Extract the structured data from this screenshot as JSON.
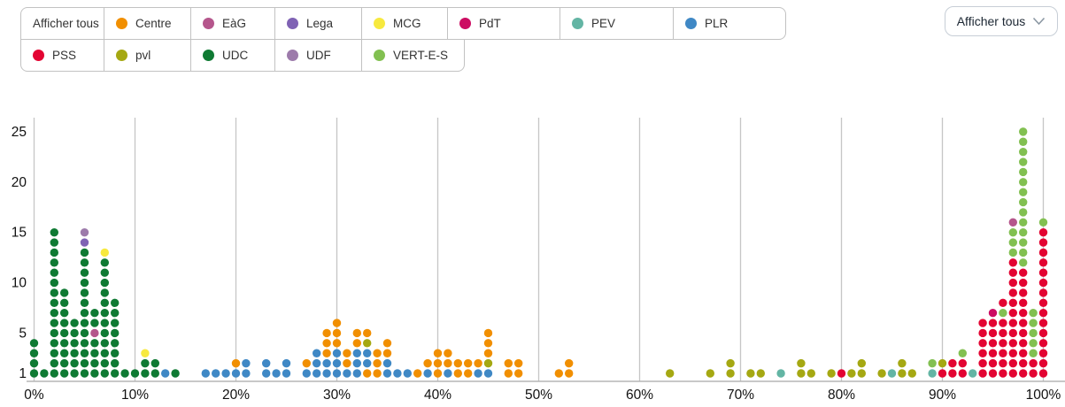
{
  "legend": {
    "rows": [
      [
        {
          "label": "Afficher tous",
          "party": null
        },
        {
          "label": "Centre",
          "party": "Centre"
        },
        {
          "label": "EàG",
          "party": "EàG"
        },
        {
          "label": "Lega",
          "party": "Lega"
        },
        {
          "label": "MCG",
          "party": "MCG"
        },
        {
          "label": "PdT",
          "party": "PdT"
        },
        {
          "label": "PEV",
          "party": "PEV"
        },
        {
          "label": "PLR",
          "party": "PLR"
        }
      ],
      [
        {
          "label": "PSS",
          "party": "PSS"
        },
        {
          "label": "pvl",
          "party": "pvl"
        },
        {
          "label": "UDC",
          "party": "UDC"
        },
        {
          "label": "UDF",
          "party": "UDF"
        },
        {
          "label": "VERT-E-S",
          "party": "VERT-E-S"
        }
      ]
    ]
  },
  "dropdown": {
    "label": "Afficher tous"
  },
  "party_colors": {
    "Centre": "#f18f01",
    "EàG": "#b5568c",
    "Lega": "#7f62b4",
    "MCG": "#f7e93e",
    "PdT": "#cc0c62",
    "PEV": "#63b5a4",
    "PLR": "#3f88c5",
    "PSS": "#e30432",
    "pvl": "#a5a812",
    "UDC": "#0f7a33",
    "UDF": "#9d7bab",
    "VERT-E-S": "#82c051"
  },
  "chart_data": {
    "type": "scatter",
    "subtype": "stacked-dot-histogram",
    "title": "",
    "xlabel": "",
    "ylabel": "",
    "x_ticks": [
      "0%",
      "10%",
      "20%",
      "30%",
      "40%",
      "50%",
      "60%",
      "70%",
      "80%",
      "90%",
      "100%"
    ],
    "y_ticks": [
      1,
      5,
      10,
      15,
      20,
      25
    ],
    "x_range": [
      0,
      100
    ],
    "y_range": [
      1,
      25
    ],
    "grid": "vertical-only",
    "gridline_color": "#c6c6c6",
    "axis_text_color": "#111111",
    "columns": [
      {
        "pct": 0,
        "stack": [
          "UDC",
          "UDC",
          "UDC",
          "UDC"
        ]
      },
      {
        "pct": 1,
        "stack": [
          "UDC"
        ]
      },
      {
        "pct": 2,
        "stack": [
          "UDC",
          "UDC",
          "UDC",
          "UDC",
          "UDC",
          "UDC",
          "UDC",
          "UDC",
          "UDC",
          "UDC",
          "UDC",
          "UDC",
          "UDC",
          "UDC",
          "UDC"
        ]
      },
      {
        "pct": 3,
        "stack": [
          "UDC",
          "UDC",
          "UDC",
          "UDC",
          "UDC",
          "UDC",
          "UDC",
          "UDC",
          "UDC"
        ]
      },
      {
        "pct": 4,
        "stack": [
          "UDC",
          "UDC",
          "UDC",
          "UDC",
          "UDC",
          "UDC"
        ]
      },
      {
        "pct": 5,
        "stack": [
          "UDC",
          "UDC",
          "UDC",
          "UDC",
          "UDC",
          "UDC",
          "UDC",
          "UDC",
          "UDC",
          "UDC",
          "UDC",
          "UDC",
          "UDC",
          "Lega",
          "UDF"
        ]
      },
      {
        "pct": 6,
        "stack": [
          "UDC",
          "UDC",
          "UDC",
          "UDC",
          "EàG",
          "UDC",
          "UDC"
        ]
      },
      {
        "pct": 7,
        "stack": [
          "UDC",
          "UDC",
          "UDC",
          "UDC",
          "UDC",
          "UDC",
          "UDC",
          "UDC",
          "UDC",
          "UDC",
          "UDC",
          "UDC",
          "MCG"
        ]
      },
      {
        "pct": 8,
        "stack": [
          "UDC",
          "UDC",
          "UDC",
          "UDC",
          "UDC",
          "UDC",
          "UDC",
          "UDC"
        ]
      },
      {
        "pct": 9,
        "stack": [
          "UDC"
        ]
      },
      {
        "pct": 10,
        "stack": [
          "UDC"
        ]
      },
      {
        "pct": 11,
        "stack": [
          "UDC",
          "UDC",
          "MCG"
        ]
      },
      {
        "pct": 12,
        "stack": [
          "UDC",
          "UDC"
        ]
      },
      {
        "pct": 13,
        "stack": [
          "PLR"
        ]
      },
      {
        "pct": 14,
        "stack": [
          "UDC"
        ]
      },
      {
        "pct": 17,
        "stack": [
          "PLR"
        ]
      },
      {
        "pct": 18,
        "stack": [
          "PLR"
        ]
      },
      {
        "pct": 19,
        "stack": [
          "PLR"
        ]
      },
      {
        "pct": 20,
        "stack": [
          "PLR",
          "Centre"
        ]
      },
      {
        "pct": 21,
        "stack": [
          "PLR",
          "PLR"
        ]
      },
      {
        "pct": 23,
        "stack": [
          "PLR",
          "PLR"
        ]
      },
      {
        "pct": 24,
        "stack": [
          "PLR"
        ]
      },
      {
        "pct": 25,
        "stack": [
          "PLR",
          "PLR"
        ]
      },
      {
        "pct": 27,
        "stack": [
          "PLR",
          "Centre"
        ]
      },
      {
        "pct": 28,
        "stack": [
          "PLR",
          "PLR",
          "PLR"
        ]
      },
      {
        "pct": 29,
        "stack": [
          "PLR",
          "PLR",
          "Centre",
          "Centre",
          "Centre"
        ]
      },
      {
        "pct": 30,
        "stack": [
          "PLR",
          "PLR",
          "PLR",
          "Centre",
          "Centre",
          "Centre"
        ]
      },
      {
        "pct": 31,
        "stack": [
          "PLR",
          "Centre",
          "Centre"
        ]
      },
      {
        "pct": 32,
        "stack": [
          "PLR",
          "PLR",
          "PLR",
          "Centre",
          "Centre"
        ]
      },
      {
        "pct": 33,
        "stack": [
          "Centre",
          "PLR",
          "PLR",
          "pvl",
          "Centre"
        ]
      },
      {
        "pct": 34,
        "stack": [
          "Centre",
          "Centre",
          "Centre"
        ]
      },
      {
        "pct": 35,
        "stack": [
          "PLR",
          "PLR",
          "Centre",
          "Centre"
        ]
      },
      {
        "pct": 36,
        "stack": [
          "PLR"
        ]
      },
      {
        "pct": 37,
        "stack": [
          "PLR"
        ]
      },
      {
        "pct": 38,
        "stack": [
          "Centre"
        ]
      },
      {
        "pct": 39,
        "stack": [
          "PLR",
          "Centre"
        ]
      },
      {
        "pct": 40,
        "stack": [
          "Centre",
          "Centre",
          "Centre"
        ]
      },
      {
        "pct": 41,
        "stack": [
          "PLR",
          "Centre",
          "Centre"
        ]
      },
      {
        "pct": 42,
        "stack": [
          "Centre",
          "Centre"
        ]
      },
      {
        "pct": 43,
        "stack": [
          "Centre",
          "Centre"
        ]
      },
      {
        "pct": 44,
        "stack": [
          "PLR",
          "Centre"
        ]
      },
      {
        "pct": 45,
        "stack": [
          "PLR",
          "pvl",
          "Centre",
          "Centre",
          "Centre"
        ]
      },
      {
        "pct": 47,
        "stack": [
          "Centre",
          "Centre"
        ]
      },
      {
        "pct": 48,
        "stack": [
          "Centre",
          "Centre"
        ]
      },
      {
        "pct": 52,
        "stack": [
          "Centre"
        ]
      },
      {
        "pct": 53,
        "stack": [
          "Centre",
          "Centre"
        ]
      },
      {
        "pct": 63,
        "stack": [
          "pvl"
        ]
      },
      {
        "pct": 67,
        "stack": [
          "pvl"
        ]
      },
      {
        "pct": 69,
        "stack": [
          "pvl",
          "pvl"
        ]
      },
      {
        "pct": 71,
        "stack": [
          "pvl"
        ]
      },
      {
        "pct": 72,
        "stack": [
          "pvl"
        ]
      },
      {
        "pct": 74,
        "stack": [
          "PEV"
        ]
      },
      {
        "pct": 76,
        "stack": [
          "pvl",
          "pvl"
        ]
      },
      {
        "pct": 77,
        "stack": [
          "pvl"
        ]
      },
      {
        "pct": 79,
        "stack": [
          "pvl"
        ]
      },
      {
        "pct": 80,
        "stack": [
          "PSS"
        ]
      },
      {
        "pct": 81,
        "stack": [
          "pvl"
        ]
      },
      {
        "pct": 82,
        "stack": [
          "pvl",
          "pvl"
        ]
      },
      {
        "pct": 84,
        "stack": [
          "pvl"
        ]
      },
      {
        "pct": 85,
        "stack": [
          "PEV"
        ]
      },
      {
        "pct": 86,
        "stack": [
          "pvl",
          "pvl"
        ]
      },
      {
        "pct": 87,
        "stack": [
          "pvl"
        ]
      },
      {
        "pct": 89,
        "stack": [
          "PEV",
          "VERT-E-S"
        ]
      },
      {
        "pct": 90,
        "stack": [
          "PSS",
          "pvl"
        ]
      },
      {
        "pct": 91,
        "stack": [
          "PSS",
          "PSS"
        ]
      },
      {
        "pct": 92,
        "stack": [
          "PSS",
          "PSS",
          "VERT-E-S"
        ]
      },
      {
        "pct": 93,
        "stack": [
          "PEV"
        ]
      },
      {
        "pct": 94,
        "stack": [
          "PSS",
          "PSS",
          "PSS",
          "PSS",
          "PSS",
          "PSS"
        ]
      },
      {
        "pct": 95,
        "stack": [
          "PSS",
          "PSS",
          "PSS",
          "PSS",
          "PSS",
          "PSS",
          "PdT"
        ]
      },
      {
        "pct": 96,
        "stack": [
          "PSS",
          "PSS",
          "PSS",
          "PSS",
          "PSS",
          "PSS",
          "VERT-E-S",
          "PSS"
        ]
      },
      {
        "pct": 97,
        "stack": [
          "PSS",
          "PSS",
          "PSS",
          "PSS",
          "PSS",
          "PSS",
          "PSS",
          "PSS",
          "PSS",
          "PSS",
          "PSS",
          "PSS",
          "VERT-E-S",
          "VERT-E-S",
          "VERT-E-S",
          "EàG"
        ]
      },
      {
        "pct": 98,
        "stack": [
          "PSS",
          "PSS",
          "PSS",
          "PSS",
          "PSS",
          "PSS",
          "PSS",
          "PSS",
          "PSS",
          "PSS",
          "PSS",
          "VERT-E-S",
          "VERT-E-S",
          "VERT-E-S",
          "VERT-E-S",
          "VERT-E-S",
          "VERT-E-S",
          "VERT-E-S",
          "VERT-E-S",
          "VERT-E-S",
          "VERT-E-S",
          "VERT-E-S",
          "VERT-E-S",
          "VERT-E-S",
          "VERT-E-S"
        ]
      },
      {
        "pct": 99,
        "stack": [
          "PSS",
          "PSS",
          "VERT-E-S",
          "VERT-E-S",
          "VERT-E-S",
          "VERT-E-S",
          "VERT-E-S"
        ]
      },
      {
        "pct": 100,
        "stack": [
          "PSS",
          "PSS",
          "PSS",
          "PSS",
          "PSS",
          "PSS",
          "PSS",
          "PSS",
          "PSS",
          "PSS",
          "PSS",
          "PSS",
          "PSS",
          "PSS",
          "PSS",
          "VERT-E-S"
        ]
      }
    ]
  }
}
